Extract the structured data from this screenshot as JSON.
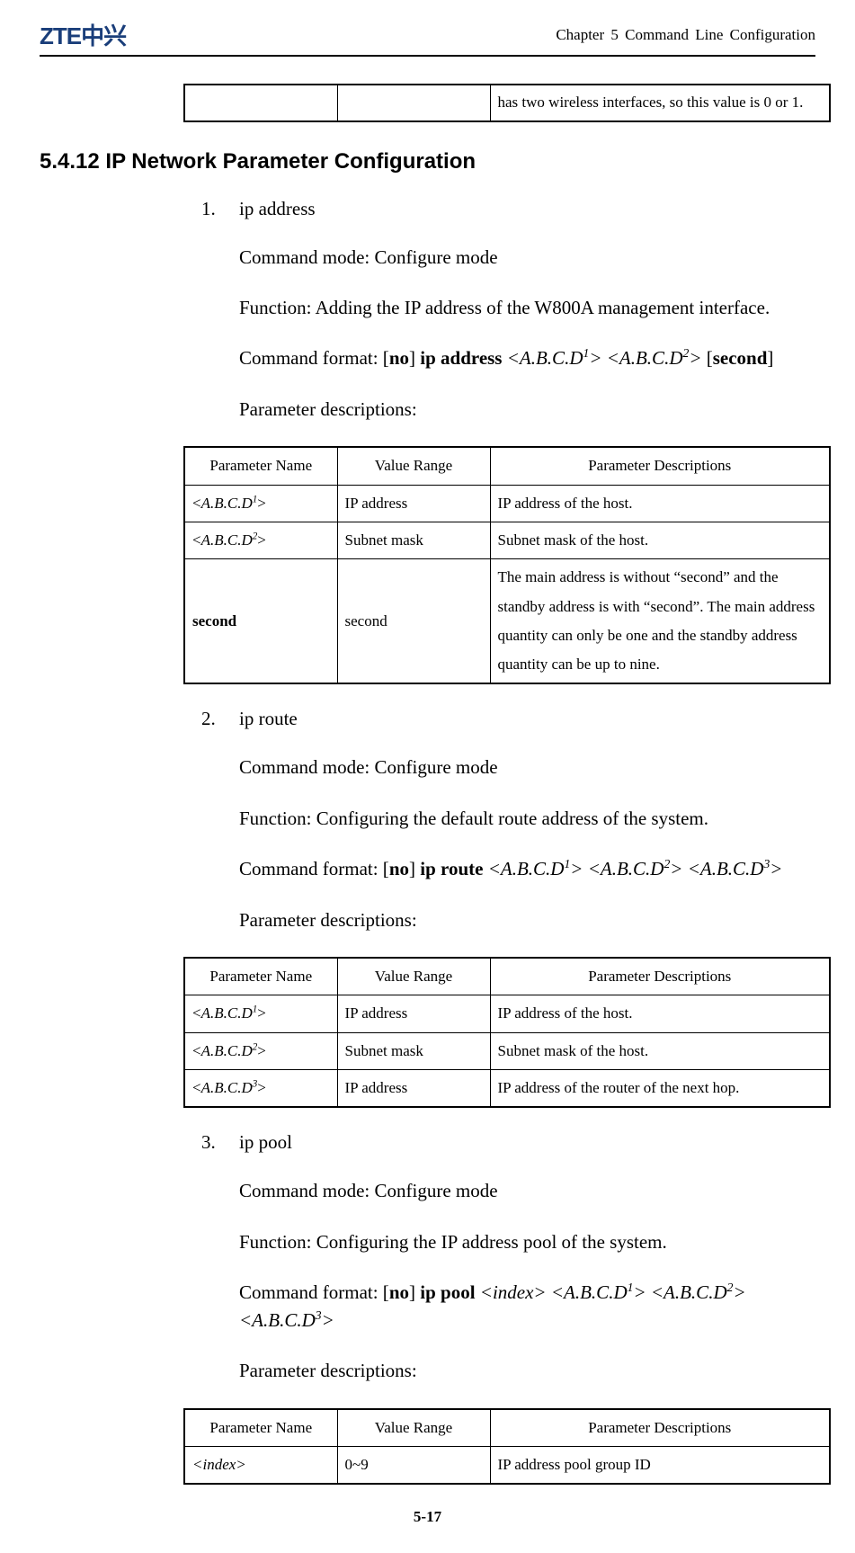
{
  "header": {
    "logo": "ZTE中兴",
    "chapter": "Chapter 5 Command Line Configuration"
  },
  "fragment_table": {
    "c1": "",
    "c2": "",
    "c3": "has two wireless interfaces, so this value is 0 or 1."
  },
  "section_heading": "5.4.12 IP Network Parameter Configuration",
  "items": [
    {
      "num": "1.",
      "title": "ip address",
      "mode": "Command mode: Configure mode",
      "func": "Function: Adding the IP address of the W800A management interface.",
      "format_prefix": "Command format: [",
      "format_no": "no",
      "format_mid1": "] ",
      "format_cmd": "ip address",
      "format_p1": " <A.B.C.D",
      "format_s1": "1",
      "format_p2": "> <A.B.C.D",
      "format_s2": "2",
      "format_suffix": "> [",
      "format_second": "second",
      "format_end": "]",
      "param_label": "Parameter descriptions:",
      "table": {
        "h1": "Parameter Name",
        "h2": "Value Range",
        "h3": "Parameter Descriptions",
        "rows": [
          {
            "p_pre": "<",
            "p_mid": "A.B.C.D",
            "p_sup": "1",
            "p_post": ">",
            "r": "IP address",
            "d": "IP address of the host."
          },
          {
            "p_pre": "<",
            "p_mid": "A.B.C.D",
            "p_sup": "2",
            "p_post": ">",
            "r": "Subnet mask",
            "d": "Subnet mask of the host."
          },
          {
            "p_bold": "second",
            "r": "second",
            "d": "The main address is without “second” and the standby address is with “second”. The main address quantity can only be one and the standby address quantity can be up to nine."
          }
        ]
      }
    },
    {
      "num": "2.",
      "title": "ip route",
      "mode": "Command mode: Configure mode",
      "func": "Function: Configuring the default route address of the system.",
      "format_prefix": "Command format: [",
      "format_no": "no",
      "format_mid1": "] ",
      "format_cmd": "ip route",
      "format_p1": " <A.B.C.D",
      "format_s1": "1",
      "format_p2": "> <A.B.C.D",
      "format_s2": "2",
      "format_p3": "> <A.B.C.D",
      "format_s3": "3",
      "format_suffix": ">",
      "param_label": "Parameter descriptions:",
      "table": {
        "h1": "Parameter Name",
        "h2": "Value Range",
        "h3": "Parameter Descriptions",
        "rows": [
          {
            "p_pre": "<",
            "p_mid": "A.B.C.D",
            "p_sup": "1",
            "p_post": ">",
            "r": "IP address",
            "d": "IP address of the host."
          },
          {
            "p_pre": "<",
            "p_mid": "A.B.C.D",
            "p_sup": "2",
            "p_post": ">",
            "r": "Subnet mask",
            "d": "Subnet mask of the host."
          },
          {
            "p_pre": "<",
            "p_mid": "A.B.C.D",
            "p_sup": "3",
            "p_post": ">",
            "r": "IP address",
            "d": "IP address of the router of the next hop."
          }
        ]
      }
    },
    {
      "num": "3.",
      "title": "ip pool",
      "mode": "Command mode: Configure mode",
      "func": "Function: Configuring the IP address pool of the system.",
      "format_prefix": "Command format: [",
      "format_no": "no",
      "format_mid1": "] ",
      "format_cmd": "ip pool",
      "format_idx": " <index>",
      "format_p1": " <A.B.C.D",
      "format_s1": "1",
      "format_p2": "> <A.B.C.D",
      "format_s2": "2",
      "format_p3": "> <A.B.C.D",
      "format_s3": "3",
      "format_suffix": ">",
      "param_label": "Parameter descriptions:",
      "table": {
        "h1": "Parameter Name",
        "h2": "Value Range",
        "h3": "Parameter Descriptions",
        "rows": [
          {
            "p_idx": "<index>",
            "r": "0~9",
            "d": "IP address pool group ID"
          }
        ]
      }
    }
  ],
  "footer": "5-17"
}
